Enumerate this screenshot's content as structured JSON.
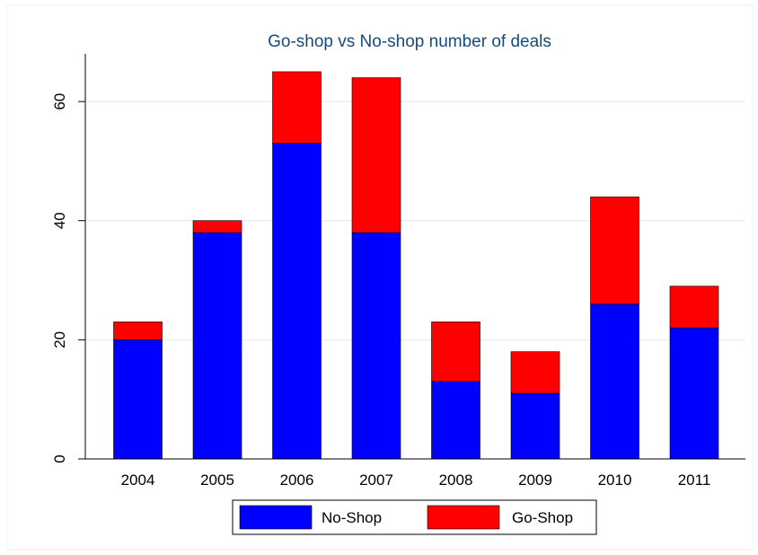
{
  "chart_data": {
    "type": "bar",
    "stacked": true,
    "title": "Go-shop vs No-shop number of deals",
    "xlabel": "",
    "ylabel": "",
    "categories": [
      "2004",
      "2005",
      "2006",
      "2007",
      "2008",
      "2009",
      "2010",
      "2011"
    ],
    "series": [
      {
        "name": "No-Shop",
        "color": "#0000ff",
        "values": [
          20,
          38,
          53,
          38,
          13,
          11,
          26,
          22
        ]
      },
      {
        "name": "Go-Shop",
        "color": "#ff0000",
        "values": [
          3,
          2,
          12,
          26,
          10,
          7,
          18,
          7
        ]
      }
    ],
    "ylim": [
      0,
      68
    ],
    "yticks": [
      0,
      20,
      40,
      60
    ],
    "ytick_labels": [
      "0",
      "20",
      "40",
      "60"
    ],
    "grid": true,
    "legend_position": "bottom"
  },
  "colors": {
    "grid": "#e8f0f0",
    "title": "#1a4a7a"
  }
}
